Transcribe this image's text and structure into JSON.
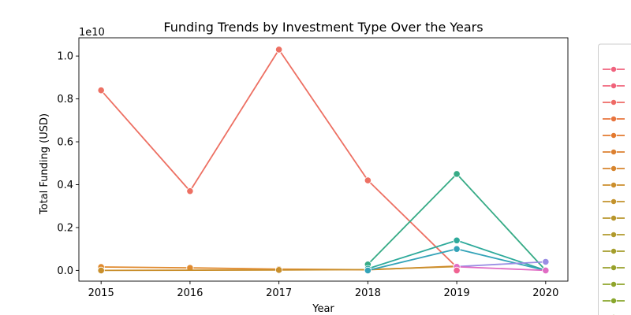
{
  "chart_data": {
    "type": "line",
    "title": "Funding Trends by Investment Type Over the Years",
    "xlabel": "Year",
    "ylabel": "Total Funding (USD)",
    "y_offset_label": "1e10",
    "xlim": [
      2014.75,
      2020.25
    ],
    "ylim": [
      -0.05,
      1.085
    ],
    "y_multiplier": 10000000000,
    "x_ticks": [
      2015,
      2016,
      2017,
      2018,
      2019,
      2020
    ],
    "x_tick_labels": [
      "2015",
      "2016",
      "2017",
      "2018",
      "2019",
      "2020"
    ],
    "y_ticks": [
      0.0,
      0.2,
      0.4,
      0.6,
      0.8,
      1.0
    ],
    "y_tick_labels": [
      "0.0",
      "0.2",
      "0.4",
      "0.6",
      "0.8",
      "1.0"
    ],
    "grid": false,
    "legend": "right, partially cut off",
    "series": [
      {
        "color": "#ed7063",
        "x": [
          2015,
          2016,
          2017,
          2018,
          2019
        ],
        "y": [
          0.84,
          0.37,
          1.03,
          0.42,
          0.015
        ]
      },
      {
        "color": "#e08a2e",
        "x": [
          2015,
          2016,
          2017,
          2018,
          2019
        ],
        "y": [
          0.016,
          0.012,
          0.006,
          0.003,
          0.02
        ]
      },
      {
        "color": "#c98f2c",
        "x": [
          2015,
          2017,
          2018,
          2019
        ],
        "y": [
          0.0,
          0.002,
          0.004,
          0.018
        ]
      },
      {
        "color": "#37ab86",
        "x": [
          2018,
          2019,
          2020
        ],
        "y": [
          0.028,
          0.45,
          0.0
        ]
      },
      {
        "color": "#2eaa9b",
        "x": [
          2018,
          2019,
          2020
        ],
        "y": [
          0.008,
          0.14,
          0.0
        ]
      },
      {
        "color": "#33a3b8",
        "x": [
          2018,
          2019,
          2020
        ],
        "y": [
          0.0,
          0.1,
          0.0
        ]
      },
      {
        "color": "#9a8de4",
        "x": [
          2019,
          2020
        ],
        "y": [
          0.018,
          0.04
        ]
      },
      {
        "color": "#e06cc4",
        "x": [
          2019,
          2020
        ],
        "y": [
          0.017,
          0.0
        ]
      },
      {
        "color": "#f06292",
        "x": [
          2019
        ],
        "y": [
          0.0
        ]
      }
    ],
    "legend_colors": [
      "#f0627e",
      "#f0627a",
      "#ee6a65",
      "#e8743d",
      "#e3792f",
      "#dc8030",
      "#d7852e",
      "#cb8e2c",
      "#c3922b",
      "#b8962b",
      "#b0992b",
      "#a49d2b",
      "#98a12b",
      "#8fa42b",
      "#88a62c",
      "#7fa92c"
    ]
  }
}
